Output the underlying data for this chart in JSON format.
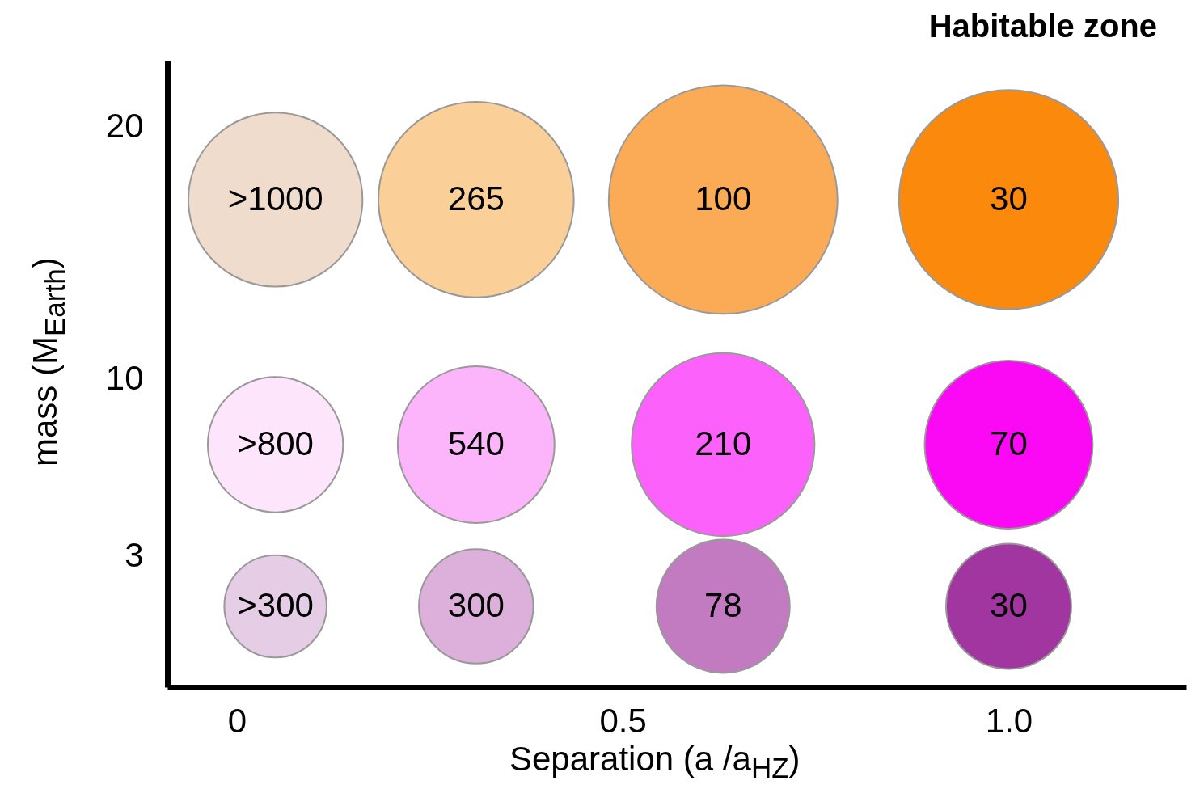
{
  "chart_data": {
    "type": "bubble",
    "xlabel": "Separation  (a /a$_{HZ}$)",
    "ylabel": "mass (M$_{Earth}$)",
    "annotations": [
      "Habitable zone",
      {
        "text": ">1000",
        "x": 0.05,
        "y": 17.1
      },
      {
        "text": "265",
        "x": 0.31,
        "y": 17.1
      },
      {
        "text": "100",
        "x": 0.63,
        "y": 17.1
      },
      {
        "text": "30",
        "x": 1.0,
        "y": 17.1
      },
      {
        "text": ">800",
        "x": 0.05,
        "y": 7.4
      },
      {
        "text": "540",
        "x": 0.31,
        "y": 7.4
      },
      {
        "text": "210",
        "x": 0.63,
        "y": 7.4
      },
      {
        "text": "70",
        "x": 1.0,
        "y": 7.4
      },
      {
        "text": ">300",
        "x": 0.05,
        "y": 1.0
      },
      {
        "text": "300",
        "x": 0.31,
        "y": 1.0
      },
      {
        "text": "78",
        "x": 0.63,
        "y": 1.0
      },
      {
        "text": "30",
        "x": 1.0,
        "y": 1.0
      }
    ],
    "x": [
      0.05,
      0.31,
      0.63,
      1.0,
      0.05,
      0.31,
      0.63,
      1.0,
      0.05,
      0.31,
      0.63,
      1.0
    ],
    "values": [
      17.1,
      17.1,
      17.1,
      17.1,
      7.4,
      7.4,
      7.4,
      7.4,
      1.0,
      1.0,
      1.0,
      1.0
    ],
    "sizes": [
      0.58,
      0.73,
      1,
      0.92,
      0.35,
      0.47,
      0.64,
      0.54,
      0.2,
      0.25,
      0.34,
      0.3
    ],
    "colors": [
      "#efdccc",
      "#fbcf98",
      "#fbaa55",
      "#fb8a0c",
      "#fde6fb",
      "#fcb4fb",
      "#fc62fb",
      "#fb08f5",
      "#e5cde6",
      "#dcb0db",
      "#c27bc1",
      "#a136a1"
    ],
    "xlim": [
      -0.09,
      1.23
    ],
    "xticks": [
      0,
      0.5,
      {
        "value": 1,
        "label": "1.0"
      }
    ],
    "ylim": [
      -2.2,
      22.6
    ],
    "yticks": [
      3,
      10,
      20
    ]
  }
}
